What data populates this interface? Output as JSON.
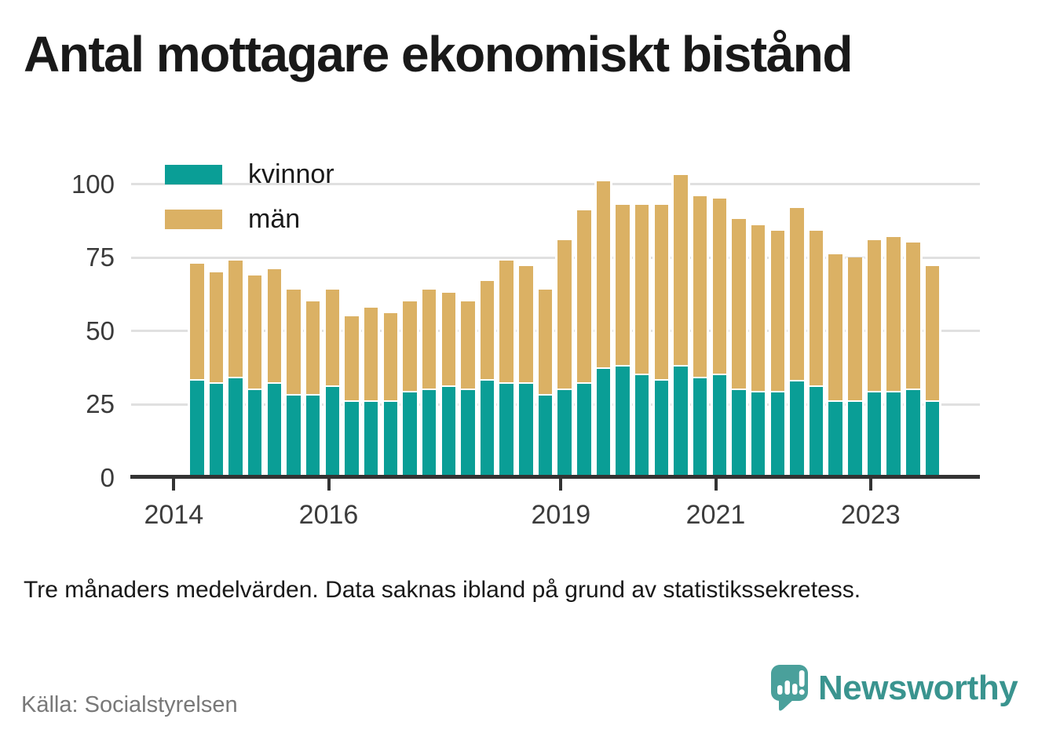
{
  "title": "Antal mottagare ekonomiskt bistånd",
  "legend": [
    {
      "label": "kvinnor",
      "color": "#0a9e96"
    },
    {
      "label": "män",
      "color": "#dbb164"
    }
  ],
  "footnote": "Tre månaders medelvärden. Data saknas ibland på grund av statistikssekretess.",
  "source": "Källa: Socialstyrelsen",
  "branding": {
    "name": "Newsworthy",
    "icon": "newsworthy-speech-bubble-chart-icon",
    "icon_color": "#4aa09b",
    "wordmark_color": "#3a948f"
  },
  "chart_data": {
    "type": "bar",
    "stacked": true,
    "title": "Antal mottagare ekonomiskt bistånd",
    "xlabel": "",
    "ylabel": "",
    "ylim": [
      0,
      110
    ],
    "y_ticks": [
      0,
      25,
      50,
      75,
      100
    ],
    "grid": true,
    "grid_color": "#e0e0e0",
    "axis_color": "#333333",
    "legend_position": "top-left",
    "x_tick_labels": [
      "2014",
      "2016",
      "2019",
      "2021",
      "2023"
    ],
    "categories": [
      "2014 Q2",
      "2014 Q3",
      "2014 Q4",
      "2015 Q1",
      "2015 Q2",
      "2015 Q3",
      "2015 Q4",
      "2016 Q1",
      "2016 Q2",
      "2016 Q3",
      "2016 Q4",
      "2017 Q1",
      "2017 Q2",
      "2017 Q3",
      "2017 Q4",
      "2018 Q1",
      "2018 Q2",
      "2018 Q3",
      "2018 Q4",
      "2019 Q1",
      "2019 Q2",
      "2019 Q3",
      "2019 Q4",
      "2020 Q1",
      "2020 Q2",
      "2020 Q3",
      "2020 Q4",
      "2021 Q1",
      "2021 Q2",
      "2021 Q3",
      "2021 Q4",
      "2022 Q1",
      "2022 Q2",
      "2022 Q3",
      "2022 Q4",
      "2023 Q1",
      "2023 Q2",
      "2023 Q3",
      "2023 Q4"
    ],
    "series": [
      {
        "name": "kvinnor",
        "color": "#0a9e96",
        "values": [
          33,
          32,
          34,
          30,
          32,
          28,
          28,
          31,
          26,
          26,
          26,
          29,
          30,
          31,
          30,
          33,
          32,
          32,
          28,
          30,
          32,
          37,
          38,
          35,
          33,
          38,
          34,
          35,
          30,
          29,
          29,
          33,
          31,
          26,
          26,
          29,
          29,
          30,
          26
        ]
      },
      {
        "name": "män",
        "color": "#dbb164",
        "values": [
          40,
          38,
          40,
          39,
          39,
          36,
          32,
          33,
          29,
          32,
          30,
          31,
          34,
          32,
          30,
          34,
          42,
          40,
          36,
          51,
          59,
          64,
          55,
          58,
          60,
          65,
          62,
          60,
          58,
          57,
          55,
          59,
          53,
          50,
          49,
          52,
          53,
          50,
          46
        ]
      }
    ]
  }
}
